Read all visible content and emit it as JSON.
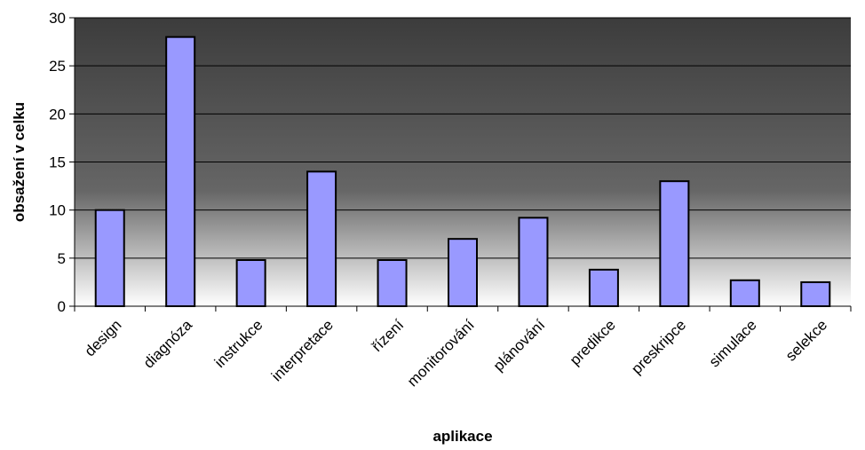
{
  "chart_data": {
    "type": "bar",
    "title": "",
    "xlabel": "aplikace",
    "ylabel": "obsažení v celku",
    "categories": [
      "design",
      "diagnóza",
      "instrukce",
      "interpretace",
      "řízení",
      "monitorování",
      "plánování",
      "predikce",
      "preskripce",
      "simulace",
      "selekce"
    ],
    "values": [
      10,
      28,
      4.8,
      14,
      4.8,
      7,
      9.2,
      3.8,
      13,
      2.7,
      2.5
    ],
    "ylim": [
      0,
      30
    ],
    "yticks": [
      0,
      5,
      10,
      15,
      20,
      25,
      30
    ],
    "grid": true,
    "legend": "none",
    "colors": {
      "bar_fill": "#9999ff",
      "bar_stroke": "#000000",
      "plot_bg_top": "#3c3c3c",
      "plot_bg_mid": "#666666",
      "plot_bg_bottom": "#ffffff",
      "gridline": "#000000"
    }
  }
}
